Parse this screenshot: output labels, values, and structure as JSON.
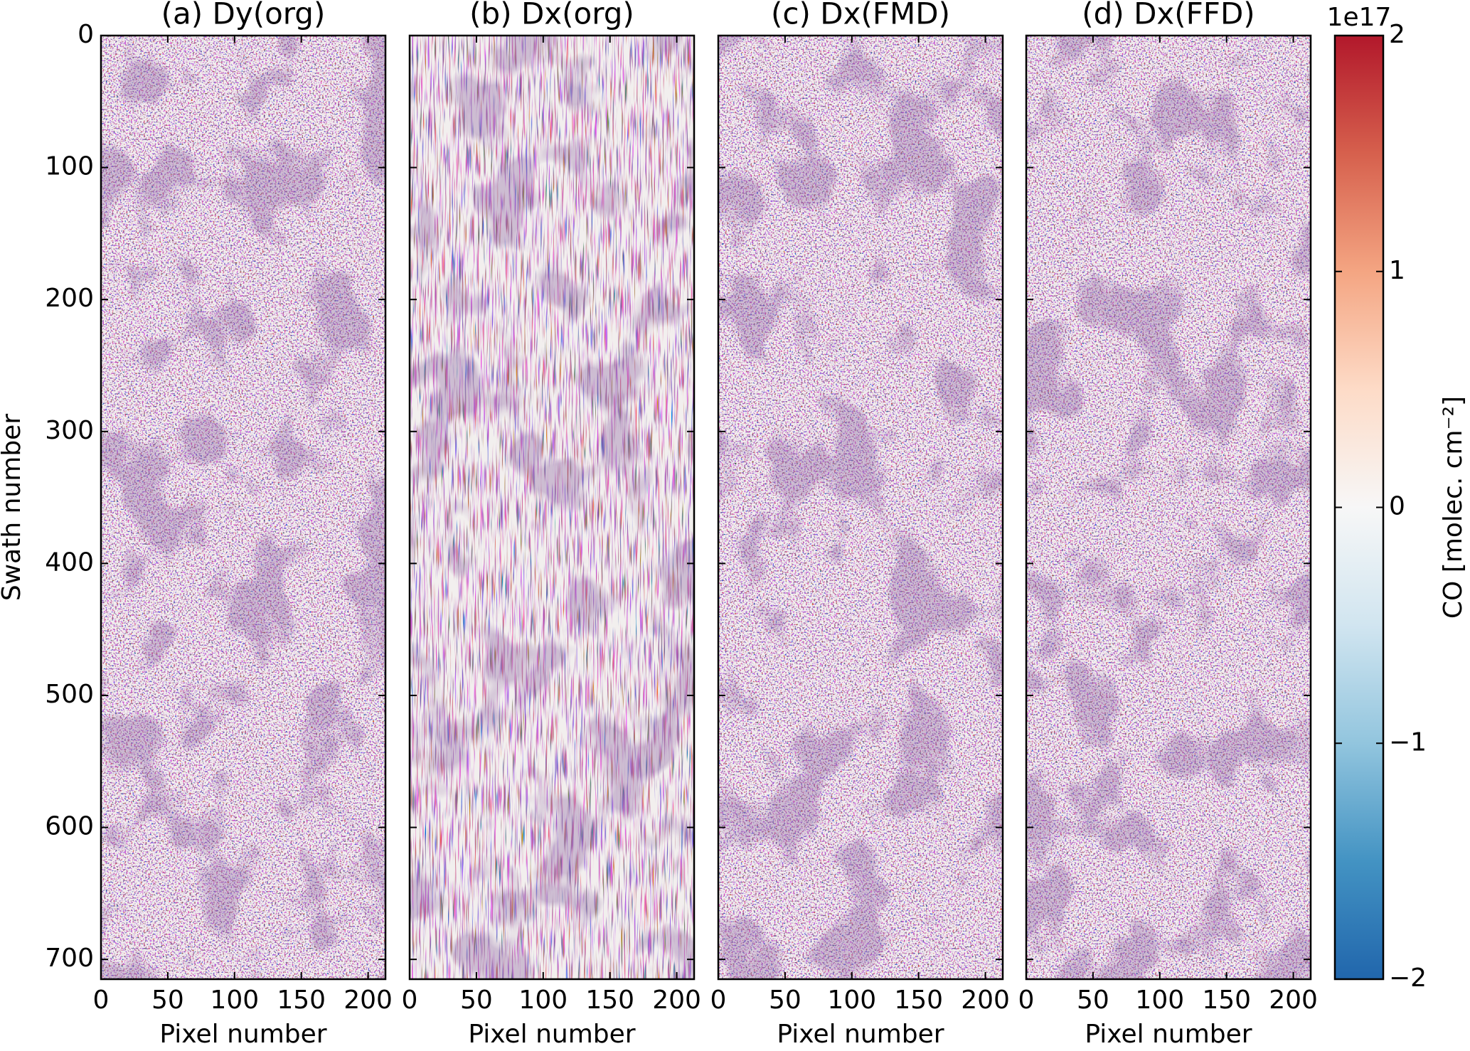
{
  "chart_data": [
    {
      "type": "heatmap",
      "title": "(a) Dy(org)",
      "xlabel": "Pixel number",
      "ylabel": "Swath number",
      "xlim": [
        0,
        213
      ],
      "xticks": [
        0,
        50,
        100,
        150,
        200
      ],
      "ylim": [
        715,
        0
      ],
      "yticks": [
        0,
        100,
        200,
        300,
        400,
        500,
        600,
        700
      ]
    },
    {
      "type": "heatmap",
      "title": "(b) Dx(org)",
      "xlabel": "Pixel number",
      "xlim": [
        0,
        213
      ],
      "xticks": [
        0,
        50,
        100,
        150,
        200
      ],
      "sharey": true
    },
    {
      "type": "heatmap",
      "title": "(c) Dx(FMD)",
      "xlabel": "Pixel number",
      "xlim": [
        0,
        213
      ],
      "xticks": [
        0,
        50,
        100,
        150,
        200
      ],
      "sharey": true
    },
    {
      "type": "heatmap",
      "title": "(d) Dx(FFD)",
      "xlabel": "Pixel number",
      "xlim": [
        0,
        213
      ],
      "xticks": [
        0,
        50,
        100,
        150,
        200
      ],
      "sharey": true
    },
    {
      "type": "colorbar",
      "label": "CO [molec. cm⁻²]",
      "offset_label": "1e17",
      "ylim": [
        -2,
        2
      ],
      "yticks": [
        {
          "value": -2,
          "label": "−2"
        },
        {
          "value": -1,
          "label": "−1"
        },
        0,
        1,
        2
      ],
      "colors": [
        "#2166ac",
        "#4393c3",
        "#92c5de",
        "#d1e5f0",
        "#f7f7f7",
        "#fddbc7",
        "#f4a582",
        "#d6604d",
        "#b2182b"
      ]
    }
  ]
}
